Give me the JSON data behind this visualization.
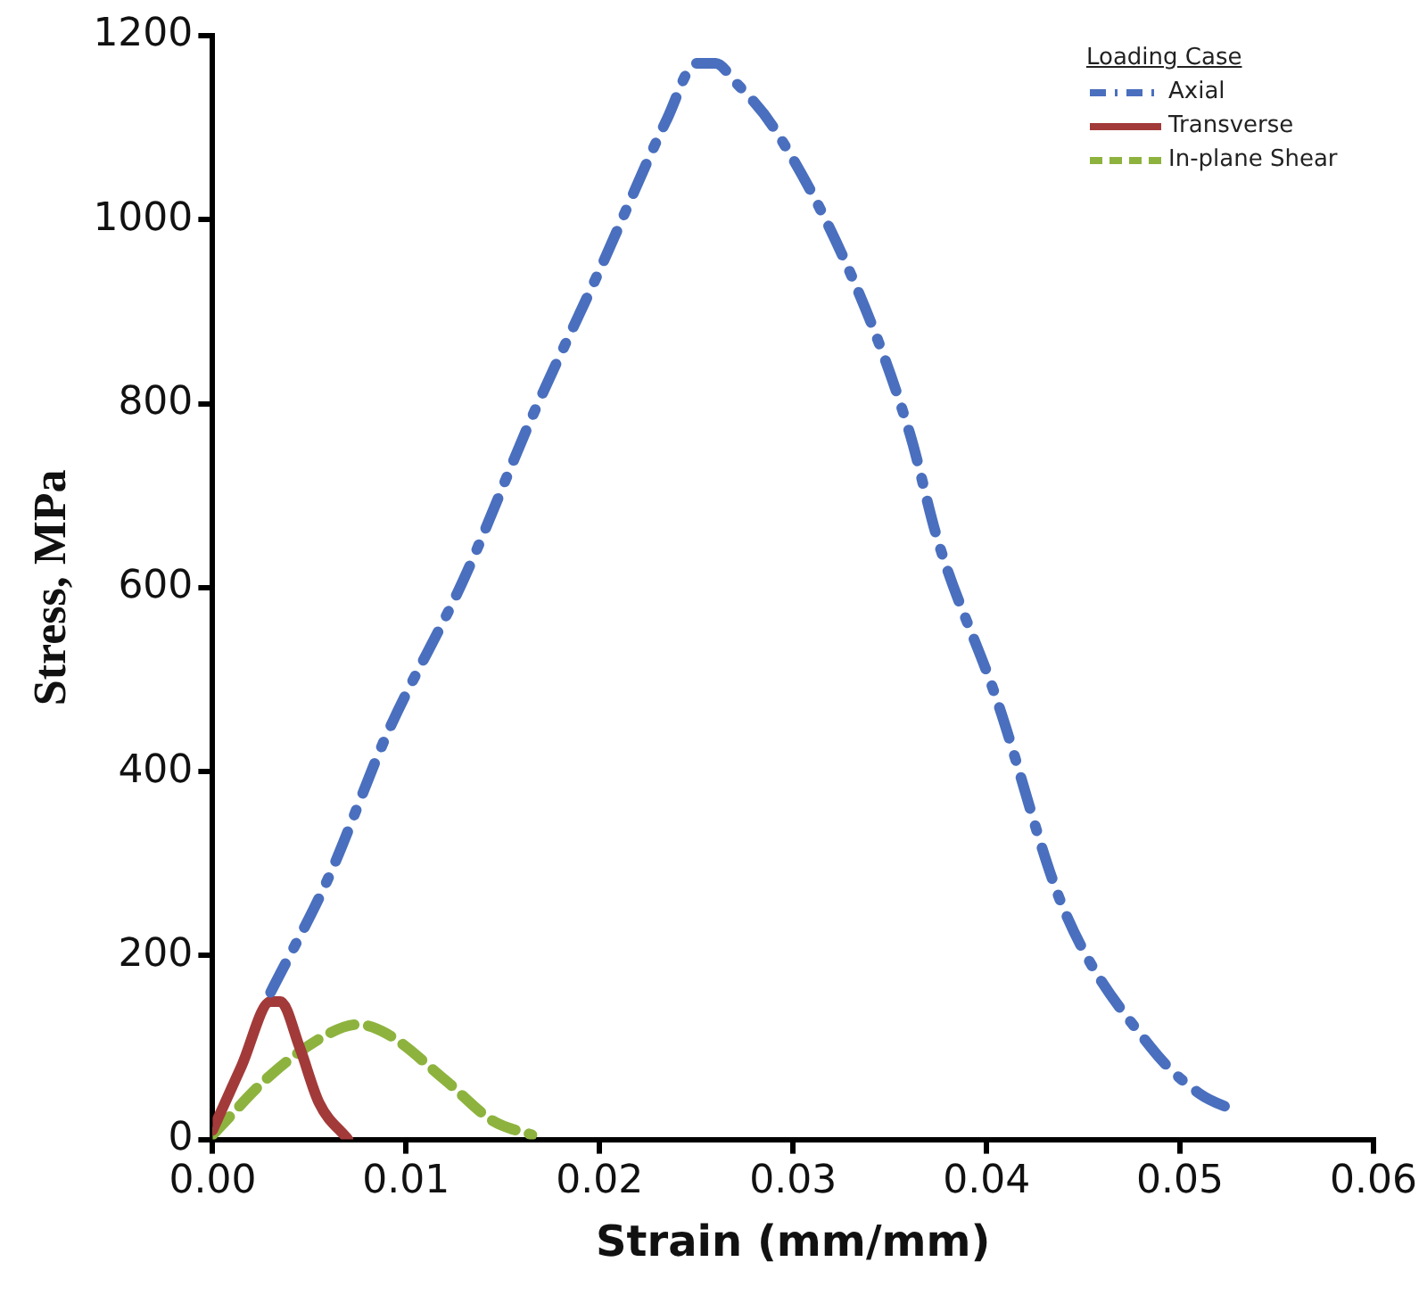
{
  "chart_data": {
    "type": "line",
    "xlabel": "Strain (mm/mm)",
    "ylabel": "Stress, MPa",
    "legend_title": "Loading Case",
    "legend": "top right",
    "grid": false,
    "marker": "none",
    "xlim": [
      0,
      0.06
    ],
    "xticks": [
      {
        "value": 0,
        "label": "0.00"
      },
      {
        "value": 0.01,
        "label": "0.01"
      },
      {
        "value": 0.02,
        "label": "0.02"
      },
      {
        "value": 0.03,
        "label": "0.03"
      },
      {
        "value": 0.04,
        "label": "0.04"
      },
      {
        "value": 0.05,
        "label": "0.05"
      },
      {
        "value": 0.06,
        "label": "0.06"
      }
    ],
    "ylim": [
      0,
      1200
    ],
    "yticks": [
      0,
      200,
      400,
      600,
      800,
      1000,
      1200
    ],
    "series": [
      {
        "name": "Axial",
        "color": "#4a6fbe",
        "line_style": "dashdot",
        "x": [
          0.003,
          0.006,
          0.009,
          0.013,
          0.0165,
          0.02,
          0.0235,
          0.025,
          0.026,
          0.027,
          0.029,
          0.033,
          0.036,
          0.0375,
          0.0405,
          0.044,
          0.0485,
          0.051,
          0.053
        ],
        "values": [
          160,
          285,
          440,
          610,
          785,
          945,
          1110,
          1170,
          1170,
          1150,
          1100,
          940,
          770,
          650,
          480,
          250,
          100,
          50,
          30
        ]
      },
      {
        "name": "Transverse",
        "color": "#a33a3a",
        "line_style": "solid",
        "x": [
          0,
          0.0015,
          0.003,
          0.0035,
          0.0045,
          0.0055,
          0.007
        ],
        "values": [
          10,
          80,
          150,
          150,
          100,
          40,
          0
        ]
      },
      {
        "name": "In-plane Shear",
        "color": "#8db33e",
        "line_style": "dashed",
        "x": [
          0,
          0.003,
          0.006,
          0.0075,
          0.009,
          0.012,
          0.0145,
          0.0165
        ],
        "values": [
          5,
          70,
          115,
          125,
          115,
          65,
          20,
          5
        ]
      }
    ]
  }
}
